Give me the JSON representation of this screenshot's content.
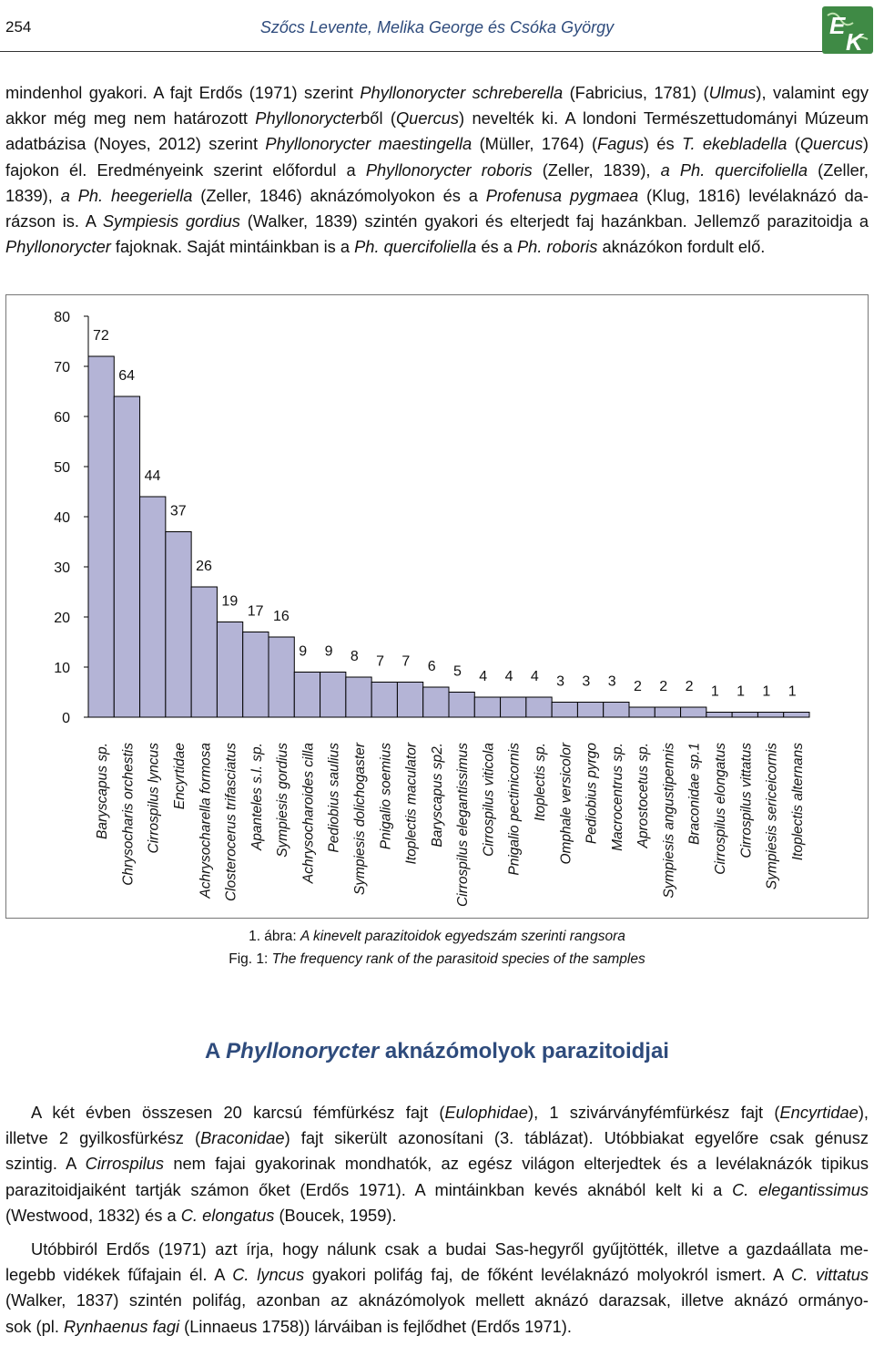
{
  "header": {
    "page_number": "254",
    "authors": "Szőcs Levente, Melika George és Csóka György",
    "logo_text": "EK"
  },
  "intro_paragraph": {
    "lines": [
      [
        {
          "t": "mindenhol gyakori. A fajt Erdős (1971) szerint "
        },
        {
          "t": "Phyllonorycter schreberella",
          "i": true
        },
        {
          "t": " (Fabricius, 1781) ("
        },
        {
          "t": "Ulmus",
          "i": true
        },
        {
          "t": "), valamint egy"
        }
      ],
      [
        {
          "t": "akkor még meg nem határozott "
        },
        {
          "t": "Phyllonorycter",
          "i": true
        },
        {
          "t": "ből ("
        },
        {
          "t": "Quercus",
          "i": true
        },
        {
          "t": ") nevelték ki. A londoni Természettudományi Múzeum"
        }
      ],
      [
        {
          "t": "adatbázisa (Noyes, 2012) szerint "
        },
        {
          "t": "Phyllonorycter maestingella",
          "i": true
        },
        {
          "t": " (Müller, 1764) ("
        },
        {
          "t": "Fagus",
          "i": true
        },
        {
          "t": ") és "
        },
        {
          "t": "T. ekebladella",
          "i": true
        },
        {
          "t": " ("
        },
        {
          "t": "Quercus",
          "i": true
        },
        {
          "t": ")"
        }
      ],
      [
        {
          "t": "fajokon él. Eredményeink szerint előfordul a "
        },
        {
          "t": "Phyllonorycter roboris",
          "i": true
        },
        {
          "t": " (Zeller, 1839), "
        },
        {
          "t": "a Ph. quercifoliella",
          "i": true
        },
        {
          "t": " (Zeller,"
        }
      ],
      [
        {
          "t": "1839), "
        },
        {
          "t": "a Ph. heegeriella",
          "i": true
        },
        {
          "t": " (Zeller, 1846) aknázómolyokon és a "
        },
        {
          "t": "Profenusa pygmaea",
          "i": true
        },
        {
          "t": " (Klug, 1816) levélaknázó da-"
        }
      ],
      [
        {
          "t": "rázson is. A "
        },
        {
          "t": "Sympiesis gordius",
          "i": true
        },
        {
          "t": " (Walker, 1839) szintén gyakori és elterjedt faj hazánkban. Jellemző parazitoidja a"
        }
      ],
      [
        {
          "t": "Phyllonorycter",
          "i": true
        },
        {
          "t": " fajoknak. Saját mintáinkban is a "
        },
        {
          "t": "Ph. quercifoliella",
          "i": true
        },
        {
          "t": " és a "
        },
        {
          "t": "Ph. roboris",
          "i": true
        },
        {
          "t": " aknázókon fordult elő."
        }
      ]
    ]
  },
  "chart_data": {
    "type": "bar",
    "title": "",
    "xlabel": "",
    "ylabel": "",
    "ylim": [
      0,
      80
    ],
    "yticks": [
      0,
      10,
      20,
      30,
      40,
      50,
      60,
      70,
      80
    ],
    "grid": false,
    "legend": "none",
    "bar_color": "#b4b4d6",
    "bar_edge_color": "#000000",
    "categories": [
      "Baryscapus sp.",
      "Chrysocharis orchestis",
      "Cirrospilus lyncus",
      "Encyrtidae",
      "Achrysocharella formosa",
      "Closterocerus trifasciatus",
      "Apanteles s.l. sp.",
      "Sympiesis gordius",
      "Achrysocharoides cilla",
      "Pediobius saulius",
      "Sympiesis dolichogaster",
      "Pnigalio soemius",
      "Itoplectis maculator",
      "Baryscapus sp2.",
      "Cirrospilus elegantissimus",
      "Cirrospilus viticola",
      "Pnigalio pectinicornis",
      "Itoplectis sp.",
      "Omphale versicolor",
      "Pediobius pyrgo",
      "Macrocentrus sp.",
      "Aprostocetus sp.",
      "Sympiesis angustipennis",
      "Braconidae sp.1",
      "Cirrospilus elongatus",
      "Cirrospilus vittatus",
      "Sympiesis sericeicornis",
      "Itoplectis alternans"
    ],
    "values": [
      72,
      64,
      44,
      37,
      26,
      19,
      17,
      16,
      9,
      9,
      8,
      7,
      7,
      6,
      5,
      4,
      4,
      4,
      3,
      3,
      3,
      2,
      2,
      2,
      1,
      1,
      1,
      1
    ],
    "data_labels": [
      "72",
      "64",
      "44",
      "37",
      "26",
      "19",
      "17",
      "16",
      "9",
      "9",
      "8",
      "7",
      "7",
      "6",
      "5",
      "4",
      "4",
      "4",
      "3",
      "3",
      "3",
      "2",
      "2",
      "2",
      "1",
      "1",
      "1",
      "1"
    ]
  },
  "figure_caption": {
    "hu_prefix": "1. ábra: ",
    "hu_text": "A kinevelt parazitoidok egyedszám szerinti rangsora",
    "en_prefix": "Fig. 1: ",
    "en_text": "The frequency rank of the parasitoid species of the samples"
  },
  "section_heading": {
    "prefix": "A ",
    "italic": "Phyllonorycter",
    "rest": " aknázómolyok parazitoidjai"
  },
  "body_paragraph_1": {
    "lines": [
      [
        {
          "t": "A két évben összesen 20 karcsú fémfürkész fajt ("
        },
        {
          "t": "Eulophidae",
          "i": true
        },
        {
          "t": "), 1 szivárványfémfürkész fajt ("
        },
        {
          "t": "Encyrtidae",
          "i": true
        },
        {
          "t": "),"
        }
      ],
      [
        {
          "t": "illetve 2 gyilkosfürkész ("
        },
        {
          "t": "Braconidae",
          "i": true
        },
        {
          "t": ") fajt sikerült azonosítani (3. táblázat). Utóbbiakat egyelőre csak génusz"
        }
      ],
      [
        {
          "t": "szintig. A "
        },
        {
          "t": "Cirrospilus",
          "i": true
        },
        {
          "t": " nem fajai gyakorinak mondhatók, az egész világon elterjedtek és a levélaknázók tipikus"
        }
      ],
      [
        {
          "t": "parazitoidjaiként tartják számon őket (Erdős 1971). A mintáinkban kevés aknából kelt ki a "
        },
        {
          "t": "C. elegantissimus",
          "i": true
        }
      ],
      [
        {
          "t": "(Westwood, 1832) és a "
        },
        {
          "t": "C. elongatus",
          "i": true
        },
        {
          "t": " (Boucek, 1959)."
        }
      ]
    ]
  },
  "body_paragraph_2": {
    "lines": [
      [
        {
          "t": "Utóbbiról Erdős (1971) azt írja, hogy nálunk csak a budai Sas-hegyről gyűjtötték, illetve a gazdaállata me-"
        }
      ],
      [
        {
          "t": "legebb vidékek fűfajain él. A "
        },
        {
          "t": "C. lyncus",
          "i": true
        },
        {
          "t": " gyakori polifág faj, de főként levélaknázó molyokról ismert. A "
        },
        {
          "t": "C. vittatus",
          "i": true
        }
      ],
      [
        {
          "t": "(Walker, 1837) szintén polifág, azonban az aknázómolyok mellett aknázó darazsak, illetve aknázó ormányo-"
        }
      ],
      [
        {
          "t": "sok (pl. "
        },
        {
          "t": "Rynhaenus fagi",
          "i": true
        },
        {
          "t": " (Linnaeus 1758)) lárváiban is fejlődhet (Erdős 1971)."
        }
      ]
    ]
  }
}
